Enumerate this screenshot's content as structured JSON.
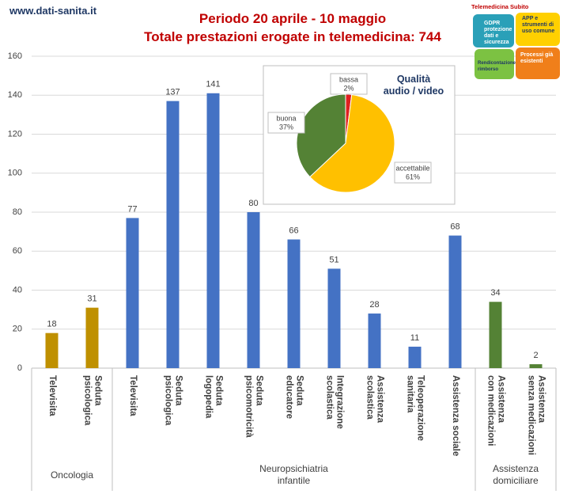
{
  "site": "www.dati-sanita.it",
  "logo": {
    "title": "Telemedicina Subito",
    "pieces": [
      "GDPR protezione dati e sicurezza",
      "APP e strumenti di uso comune",
      "Rendicontazione rimborso",
      "Processi già esistenti"
    ]
  },
  "chart_data": [
    {
      "type": "bar",
      "title": "Periodo 20 aprile - 10 maggio",
      "subtitle": "Totale prestazioni erogate in telemedicina: 744",
      "groups": [
        {
          "name": "Oncologia",
          "color": "#bf9000",
          "categories": [
            "Televisita",
            "Seduta\npsicologica"
          ],
          "values": [
            18,
            31
          ]
        },
        {
          "name": "Neuropsichiatria infantile",
          "color": "#4472c4",
          "categories": [
            "Televisita",
            "Seduta\npsicologica",
            "Seduta\nlogopedia",
            "Seduta\npsicomotricità",
            "Seduta\neducatore",
            "Integrazione\nscolastica",
            "Assistenza\nscolastica",
            "Teleoperazione\nsanitaria",
            "Assistenza sociale"
          ],
          "values": [
            77,
            137,
            141,
            80,
            66,
            51,
            28,
            11,
            68
          ]
        },
        {
          "name": "Assistenza\ndomiciliare",
          "color": "#548235",
          "categories": [
            "Assistenza\ncon medicazioni",
            "Assistenza\nsenza medicazioni"
          ],
          "values": [
            34,
            2
          ]
        }
      ],
      "ylim": [
        0,
        160
      ],
      "yticks": [
        0,
        20,
        40,
        60,
        80,
        100,
        120,
        140,
        160
      ],
      "grid": true
    },
    {
      "type": "pie",
      "title": "Qualità\naudio / video",
      "categories": [
        "bassa",
        "accettabile",
        "buona"
      ],
      "values": [
        2,
        61,
        37
      ],
      "value_labels": [
        "2%",
        "61%",
        "37%"
      ],
      "colors": [
        "#e02020",
        "#ffc000",
        "#548235"
      ]
    }
  ]
}
